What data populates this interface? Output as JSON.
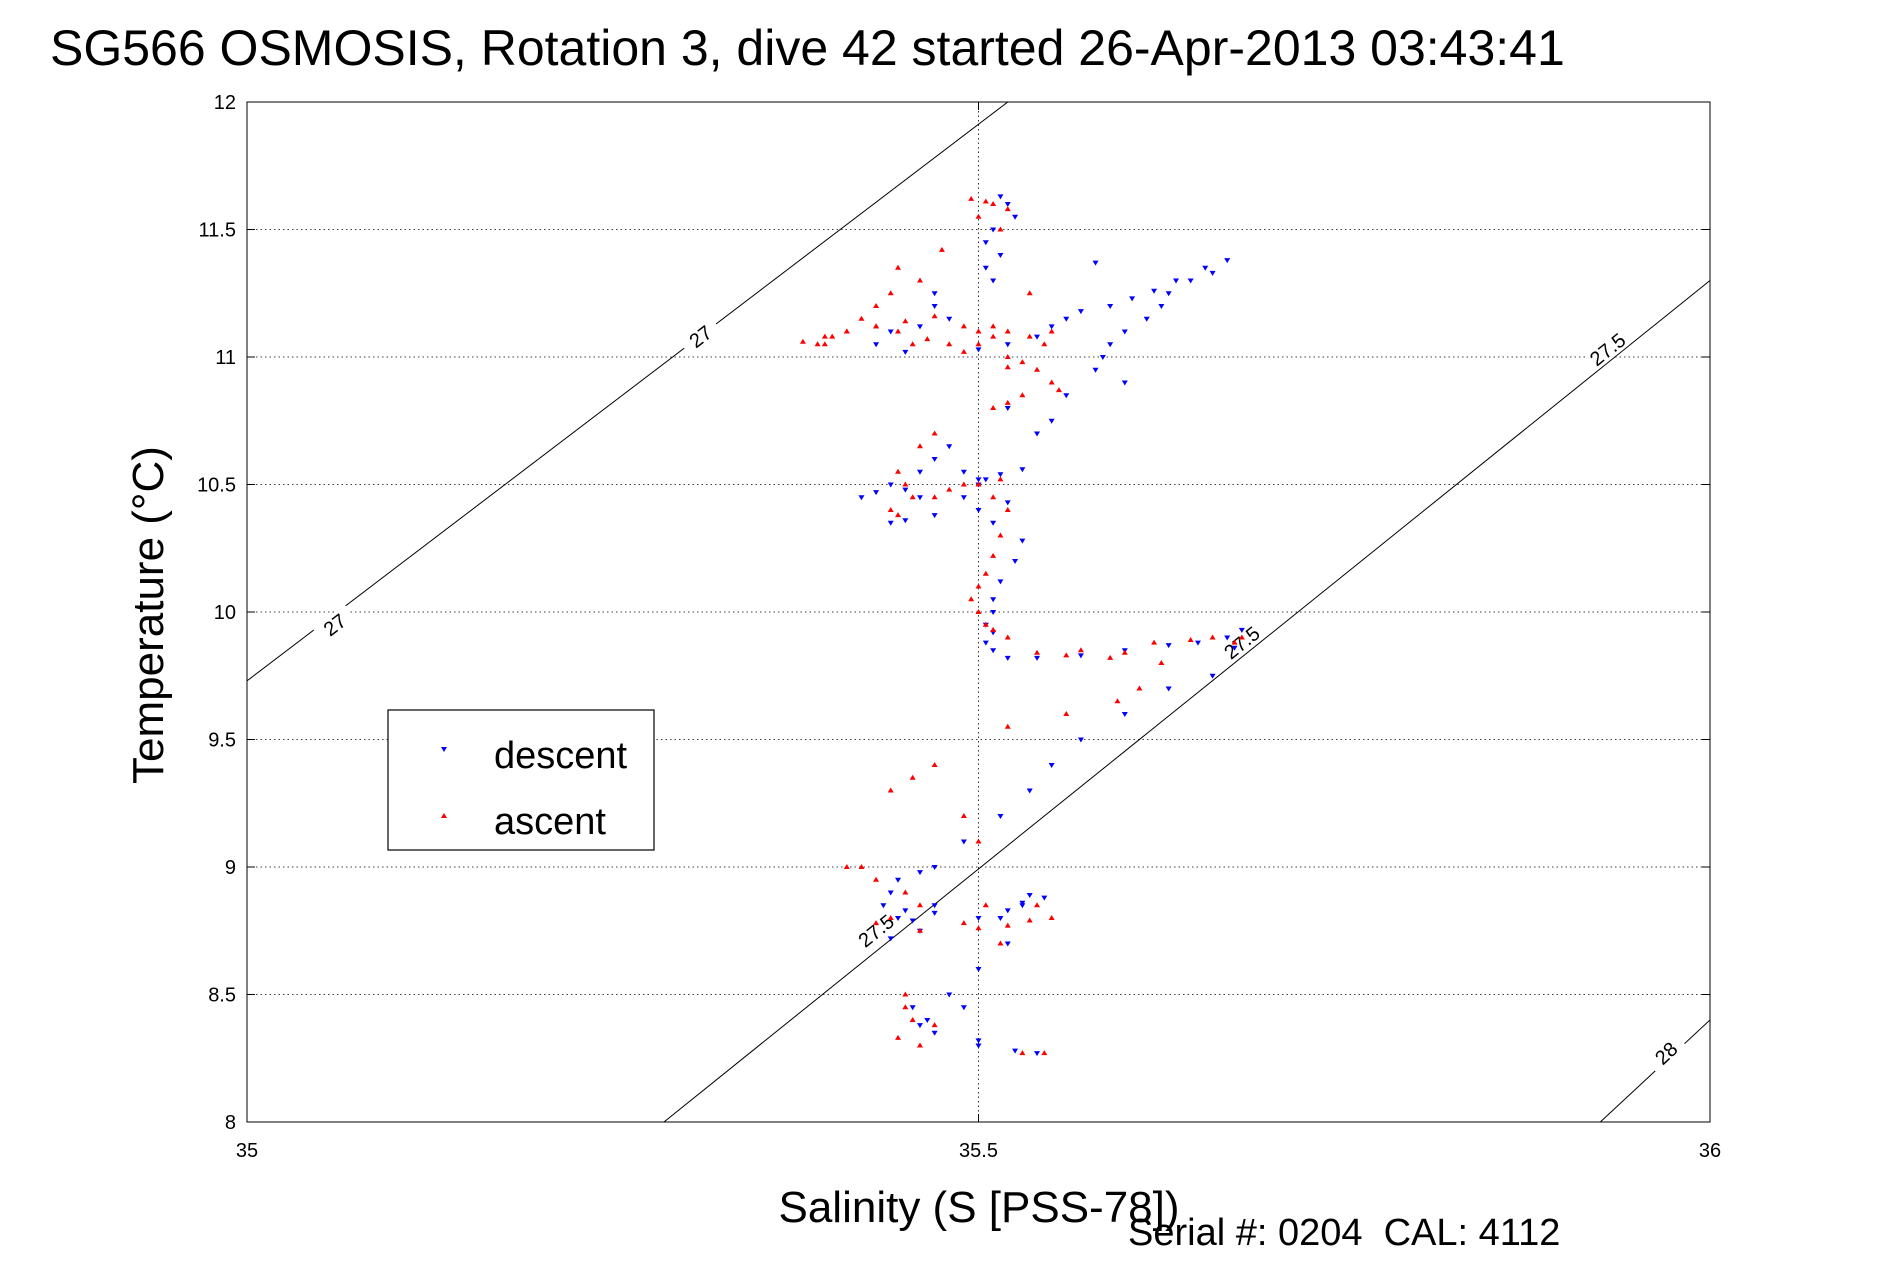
{
  "chart_data": {
    "type": "scatter",
    "title": "SG566 OSMOSIS, Rotation 3, dive 42 started 26-Apr-2013 03:43:41",
    "xlabel": "Salinity (S [PSS-78])",
    "ylabel": "Temperature (°C)",
    "xlim": [
      35,
      36
    ],
    "ylim": [
      8,
      12
    ],
    "x_ticks": [
      "35",
      "35.5",
      "36"
    ],
    "y_ticks": [
      "8",
      "8.5",
      "9",
      "9.5",
      "10",
      "10.5",
      "11",
      "11.5",
      "12"
    ],
    "grid": true,
    "legend_position": "middle-left",
    "footer": "Serial #: 0204  CAL: 4112",
    "density_contours": [
      {
        "label": "27",
        "points": [
          [
            35.0,
            9.73
          ],
          [
            35.52,
            12.0
          ]
        ],
        "label_positions": [
          [
            35.06,
            9.95
          ],
          [
            35.31,
            11.08
          ]
        ]
      },
      {
        "label": "27.5",
        "points": [
          [
            35.285,
            8.0
          ],
          [
            36.0,
            11.3
          ]
        ],
        "label_positions": [
          [
            35.43,
            8.75
          ],
          [
            35.68,
            9.88
          ],
          [
            35.93,
            11.03
          ]
        ]
      },
      {
        "label": "28",
        "points": [
          [
            35.925,
            8.0
          ],
          [
            36.0,
            8.4
          ]
        ],
        "label_positions": [
          [
            35.97,
            8.27
          ]
        ]
      }
    ],
    "series": [
      {
        "name": "descent",
        "color": "#0000ff",
        "marker": "triangle-down",
        "x": [
          35.515,
          35.52,
          35.525,
          35.51,
          35.505,
          35.515,
          35.505,
          35.51,
          35.58,
          35.47,
          35.47,
          35.48,
          35.46,
          35.44,
          35.43,
          35.45,
          35.5,
          35.52,
          35.54,
          35.55,
          35.56,
          35.57,
          35.59,
          35.605,
          35.62,
          35.635,
          35.655,
          35.67,
          35.66,
          35.645,
          35.63,
          35.625,
          35.615,
          35.6,
          35.59,
          35.585,
          35.58,
          35.6,
          35.56,
          35.52,
          35.55,
          35.54,
          35.48,
          35.47,
          35.46,
          35.44,
          35.43,
          35.42,
          35.45,
          35.5,
          35.53,
          35.515,
          35.5,
          35.49,
          35.5,
          35.47,
          35.45,
          35.44,
          35.46,
          35.49,
          35.505,
          35.52,
          35.51,
          35.53,
          35.525,
          35.515,
          35.51,
          35.51,
          35.505,
          35.51,
          35.505,
          35.51,
          35.52,
          35.54,
          35.57,
          35.6,
          35.63,
          35.65,
          35.67,
          35.68,
          35.675,
          35.66,
          35.63,
          35.6,
          35.57,
          35.55,
          35.535,
          35.515,
          35.49,
          35.47,
          35.46,
          35.445,
          35.44,
          35.435,
          35.45,
          35.47,
          35.5,
          35.52,
          35.53,
          35.535,
          35.46,
          35.44,
          35.455,
          35.47,
          35.445,
          35.5,
          35.515,
          35.53,
          35.545,
          35.455,
          35.465,
          35.46,
          35.47,
          35.5,
          35.48,
          35.49,
          35.54,
          35.525,
          35.5,
          35.52
        ],
        "y": [
          11.63,
          11.6,
          11.55,
          11.5,
          11.45,
          11.4,
          11.35,
          11.3,
          11.37,
          11.25,
          11.2,
          11.15,
          11.12,
          11.1,
          11.05,
          11.02,
          11.03,
          11.05,
          11.08,
          11.12,
          11.15,
          11.18,
          11.2,
          11.23,
          11.26,
          11.3,
          11.35,
          11.38,
          11.33,
          11.3,
          11.25,
          11.2,
          11.15,
          11.1,
          11.05,
          11.0,
          10.95,
          10.9,
          10.85,
          10.8,
          10.75,
          10.7,
          10.65,
          10.6,
          10.55,
          10.5,
          10.47,
          10.45,
          10.48,
          10.52,
          10.56,
          10.54,
          10.5,
          10.45,
          10.4,
          10.38,
          10.36,
          10.35,
          10.45,
          10.55,
          10.52,
          10.43,
          10.35,
          10.28,
          10.2,
          10.12,
          10.05,
          10.0,
          9.95,
          9.92,
          9.88,
          9.85,
          9.82,
          9.82,
          9.83,
          9.85,
          9.87,
          9.88,
          9.9,
          9.93,
          9.86,
          9.75,
          9.7,
          9.6,
          9.5,
          9.4,
          9.3,
          9.2,
          9.1,
          9.0,
          8.98,
          8.95,
          8.9,
          8.85,
          8.83,
          8.82,
          8.8,
          8.83,
          8.86,
          8.89,
          8.75,
          8.72,
          8.79,
          8.85,
          8.8,
          8.6,
          8.8,
          8.85,
          8.88,
          8.45,
          8.4,
          8.38,
          8.35,
          8.32,
          8.5,
          8.45,
          8.27,
          8.28,
          8.3,
          8.7
        ]
      },
      {
        "name": "ascent",
        "color": "#ff0000",
        "marker": "triangle-up",
        "x": [
          35.495,
          35.505,
          35.51,
          35.52,
          35.5,
          35.515,
          35.475,
          35.445,
          35.46,
          35.44,
          35.43,
          35.42,
          35.41,
          35.4,
          35.395,
          35.39,
          35.38,
          35.395,
          35.41,
          35.43,
          35.45,
          35.47,
          35.49,
          35.5,
          35.51,
          35.52,
          35.535,
          35.545,
          35.43,
          35.445,
          35.455,
          35.465,
          35.48,
          35.49,
          35.5,
          35.51,
          35.52,
          35.53,
          35.54,
          35.55,
          35.555,
          35.53,
          35.52,
          35.51,
          35.52,
          35.55,
          35.535,
          35.47,
          35.46,
          35.445,
          35.45,
          35.48,
          35.5,
          35.515,
          35.455,
          35.44,
          35.445,
          35.47,
          35.49,
          35.51,
          35.52,
          35.515,
          35.51,
          35.505,
          35.5,
          35.495,
          35.5,
          35.505,
          35.51,
          35.52,
          35.54,
          35.56,
          35.59,
          35.6,
          35.57,
          35.62,
          35.645,
          35.66,
          35.675,
          35.68,
          35.625,
          35.61,
          35.595,
          35.56,
          35.52,
          35.47,
          35.455,
          35.44,
          35.42,
          35.43,
          35.45,
          35.46,
          35.44,
          35.43,
          35.46,
          35.49,
          35.5,
          35.52,
          35.535,
          35.55,
          35.505,
          35.515,
          35.45,
          35.45,
          35.455,
          35.47,
          35.445,
          35.46,
          35.53,
          35.545,
          35.54,
          35.5,
          35.49,
          35.41
        ],
        "y": [
          11.62,
          11.61,
          11.6,
          11.58,
          11.55,
          11.5,
          11.42,
          11.35,
          11.3,
          11.25,
          11.2,
          11.15,
          11.1,
          11.08,
          11.05,
          11.05,
          11.06,
          11.08,
          11.1,
          11.12,
          11.14,
          11.16,
          11.12,
          11.1,
          11.12,
          11.1,
          11.08,
          11.05,
          11.12,
          11.1,
          11.05,
          11.07,
          11.05,
          11.02,
          11.05,
          11.08,
          11.0,
          10.98,
          10.95,
          10.9,
          10.87,
          10.85,
          10.82,
          10.8,
          10.96,
          11.1,
          11.25,
          10.7,
          10.65,
          10.55,
          10.5,
          10.48,
          10.5,
          10.52,
          10.45,
          10.4,
          10.38,
          10.45,
          10.5,
          10.45,
          10.4,
          10.3,
          10.22,
          10.15,
          10.1,
          10.05,
          10.0,
          9.95,
          9.93,
          9.9,
          9.84,
          9.83,
          9.82,
          9.84,
          9.85,
          9.88,
          9.89,
          9.9,
          9.88,
          9.9,
          9.8,
          9.7,
          9.65,
          9.6,
          9.55,
          9.4,
          9.35,
          9.3,
          9.0,
          8.95,
          8.9,
          8.85,
          8.8,
          8.78,
          8.75,
          8.78,
          8.76,
          8.77,
          8.79,
          8.8,
          8.85,
          8.7,
          8.5,
          8.45,
          8.4,
          8.38,
          8.33,
          8.3,
          8.27,
          8.27,
          8.85,
          9.1,
          9.2,
          9.0
        ]
      }
    ]
  }
}
